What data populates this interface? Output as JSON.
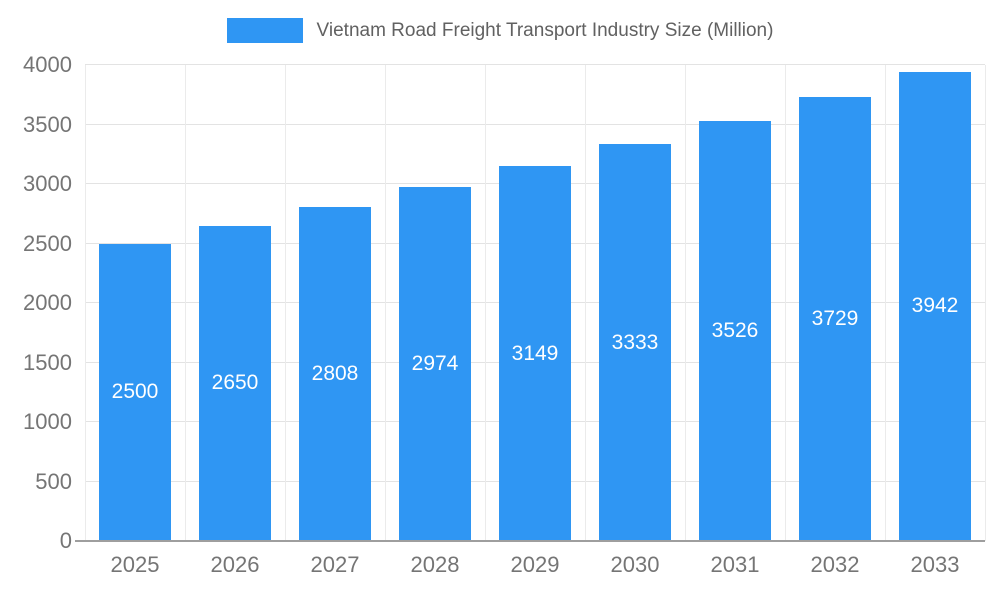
{
  "chart_data": {
    "type": "bar",
    "title": "Vietnam Road Freight Transport Industry Size (Million)",
    "categories": [
      "2025",
      "2026",
      "2027",
      "2028",
      "2029",
      "2030",
      "2031",
      "2032",
      "2033"
    ],
    "values": [
      2500,
      2650,
      2808,
      2974,
      3149,
      3333,
      3526,
      3729,
      3942
    ],
    "xlabel": "",
    "ylabel": "",
    "ylim": [
      0,
      4000
    ],
    "yticks": [
      0,
      500,
      1000,
      1500,
      2000,
      2500,
      3000,
      3500,
      4000
    ],
    "grid": true,
    "legend_position": "top",
    "bar_color": "#2F96F3",
    "value_label_color": "#ffffff",
    "tick_label_color": "#757575",
    "title_color": "#616161"
  }
}
